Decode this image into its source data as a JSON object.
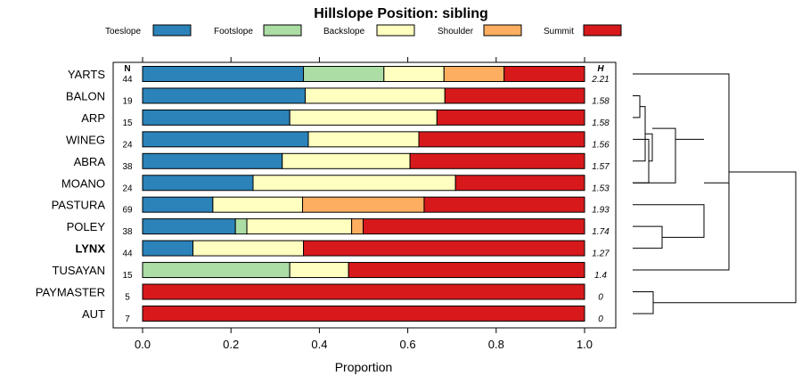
{
  "chart_data": {
    "type": "bar",
    "stacked": true,
    "orientation": "horizontal",
    "title": "Hillslope Position: sibling",
    "xlabel": "Proportion",
    "xlim": [
      0,
      1
    ],
    "xticks": [
      "0.0",
      "0.2",
      "0.4",
      "0.6",
      "0.8",
      "1.0"
    ],
    "xtick_values": [
      0,
      0.2,
      0.4,
      0.6,
      0.8,
      1.0
    ],
    "legend_position": "top",
    "series": [
      {
        "name": "Toeslope",
        "color": "#2B83BA"
      },
      {
        "name": "Footslope",
        "color": "#ABDDA4"
      },
      {
        "name": "Backslope",
        "color": "#FFFFBF"
      },
      {
        "name": "Shoulder",
        "color": "#FDAE61"
      },
      {
        "name": "Summit",
        "color": "#D7191C"
      }
    ],
    "n_header": "N",
    "h_header": "H",
    "highlight_row": "LYNX",
    "rows": [
      {
        "name": "YARTS",
        "n": "44",
        "h": "2.21",
        "values": [
          0.364,
          0.182,
          0.136,
          0.136,
          0.182
        ]
      },
      {
        "name": "BALON",
        "n": "19",
        "h": "1.58",
        "values": [
          0.368,
          0,
          0.316,
          0,
          0.316
        ]
      },
      {
        "name": "ARP",
        "n": "15",
        "h": "1.58",
        "values": [
          0.333,
          0,
          0.333,
          0,
          0.334
        ]
      },
      {
        "name": "WINEG",
        "n": "24",
        "h": "1.56",
        "values": [
          0.375,
          0,
          0.25,
          0,
          0.375
        ]
      },
      {
        "name": "ABRA",
        "n": "38",
        "h": "1.57",
        "values": [
          0.316,
          0,
          0.289,
          0,
          0.395
        ]
      },
      {
        "name": "MOANO",
        "n": "24",
        "h": "1.53",
        "values": [
          0.25,
          0,
          0.458,
          0,
          0.292
        ]
      },
      {
        "name": "PASTURA",
        "n": "69",
        "h": "1.93",
        "values": [
          0.159,
          0,
          0.203,
          0.275,
          0.363
        ]
      },
      {
        "name": "POLEY",
        "n": "38",
        "h": "1.74",
        "values": [
          0.21,
          0.026,
          0.237,
          0.026,
          0.501
        ]
      },
      {
        "name": "LYNX",
        "n": "44",
        "h": "1.27",
        "values": [
          0.114,
          0,
          0.25,
          0,
          0.636
        ]
      },
      {
        "name": "TUSAYAN",
        "n": "15",
        "h": "1.4",
        "values": [
          0,
          0.333,
          0.133,
          0,
          0.534
        ]
      },
      {
        "name": "PAYMASTER",
        "n": "5",
        "h": "0",
        "values": [
          0,
          0,
          0,
          0,
          1.0
        ]
      },
      {
        "name": "AUT",
        "n": "7",
        "h": "0",
        "values": [
          0,
          0,
          0,
          0,
          1.0
        ]
      }
    ]
  }
}
